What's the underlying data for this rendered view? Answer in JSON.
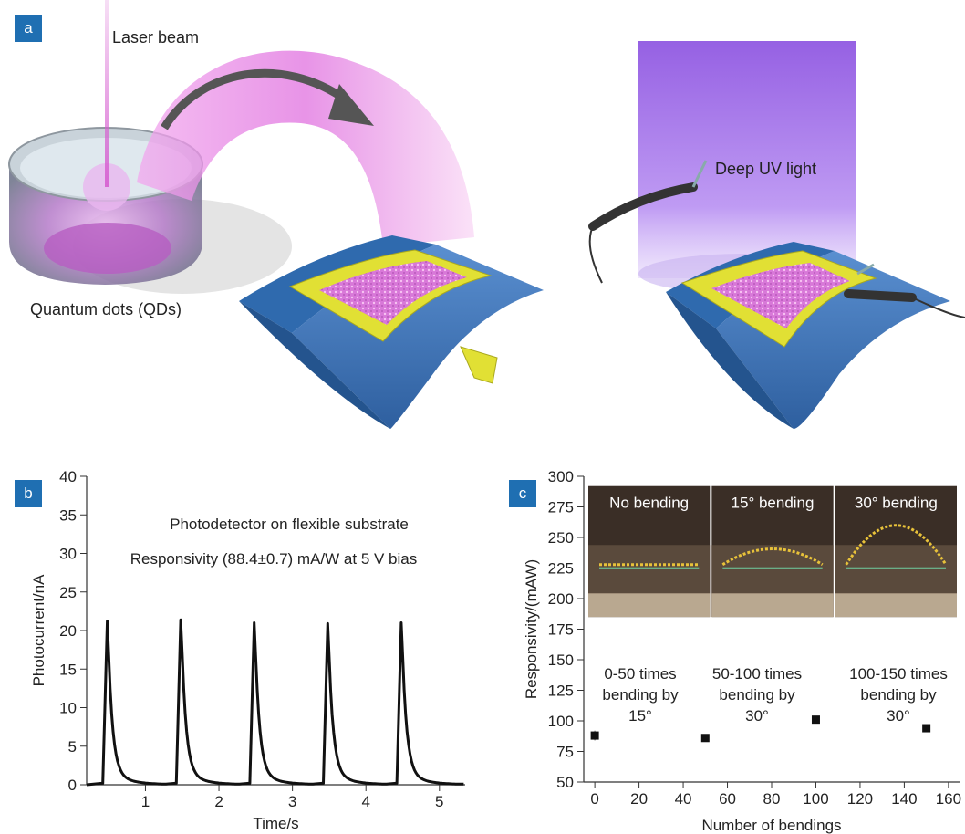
{
  "panel_a": {
    "tag": "a",
    "laser_label": "Laser beam",
    "qd_label": "Quantum dots (QDs)",
    "uv_label": "Deep UV light"
  },
  "chart_data": [
    {
      "id": "b",
      "type": "line",
      "tag": "b",
      "xlabel": "Time/s",
      "ylabel": "Photocurrent/nA",
      "xlim": [
        0.2,
        5.35
      ],
      "ylim": [
        0,
        40
      ],
      "xticks": [
        1,
        2,
        3,
        4,
        5
      ],
      "yticks": [
        0,
        5,
        10,
        15,
        20,
        25,
        30,
        35,
        40
      ],
      "grid": false,
      "annotations": [
        "Photodetector on flexible substrate",
        "Responsivity (88.4±0.7) mA/W at 5 V bias"
      ],
      "peaks": [
        {
          "on": 0.42,
          "peak_t": 0.48,
          "value": 21.2
        },
        {
          "on": 1.42,
          "peak_t": 1.48,
          "value": 21.4
        },
        {
          "on": 2.42,
          "peak_t": 2.48,
          "value": 21.0
        },
        {
          "on": 3.42,
          "peak_t": 3.48,
          "value": 20.9
        },
        {
          "on": 4.42,
          "peak_t": 4.48,
          "value": 21.0
        }
      ]
    },
    {
      "id": "c",
      "type": "scatter",
      "tag": "c",
      "xlabel": "Number of bendings",
      "ylabel": "Responsivity/(mAW)",
      "xlim": [
        -5,
        165
      ],
      "ylim": [
        50,
        300
      ],
      "xticks": [
        0,
        20,
        40,
        60,
        80,
        100,
        120,
        140,
        160
      ],
      "yticks": [
        50,
        75,
        100,
        125,
        150,
        175,
        200,
        225,
        250,
        275,
        300
      ],
      "grid": false,
      "x": [
        0,
        50,
        100,
        150
      ],
      "y": [
        88,
        86,
        101,
        94
      ],
      "err": [
        4,
        3,
        3,
        3
      ],
      "photo_labels": [
        "No bending",
        "15° bending",
        "30° bending"
      ],
      "group_annotations": [
        {
          "lines": [
            "0-50 times",
            "bending by",
            "15°"
          ]
        },
        {
          "lines": [
            "50-100 times",
            "bending by",
            "30°"
          ]
        },
        {
          "lines": [
            "100-150 times",
            "bending by",
            "30°"
          ]
        }
      ]
    }
  ]
}
